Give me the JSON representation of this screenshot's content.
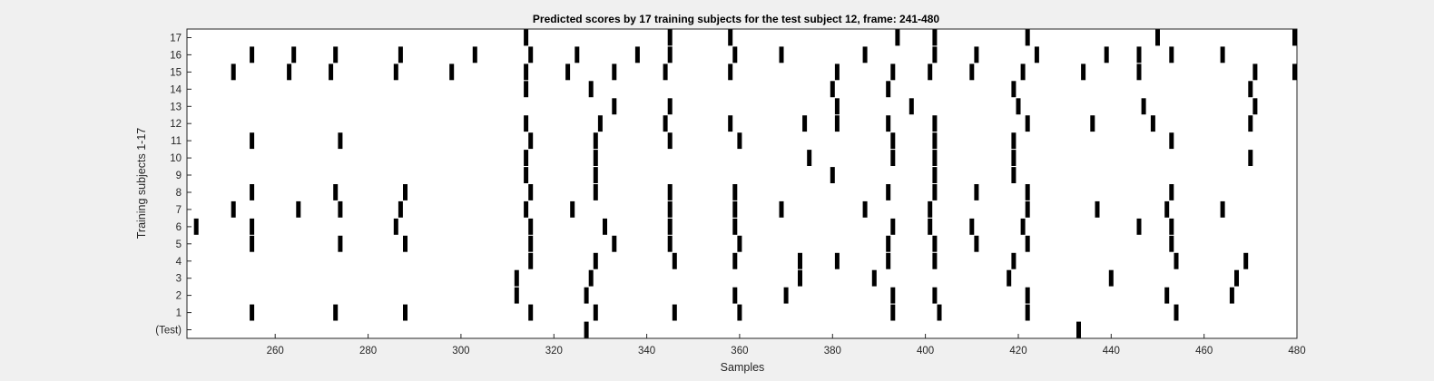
{
  "chart_data": {
    "type": "raster",
    "title": "Predicted scores by 17 training subjects for the test subject 12, frame: 241-480",
    "xlabel": "Samples",
    "ylabel": "Training subjects 1-17",
    "xlim": [
      241,
      480
    ],
    "xticks": [
      260,
      280,
      300,
      320,
      340,
      360,
      380,
      400,
      420,
      440,
      460,
      480
    ],
    "rows": [
      "(Test)",
      "1",
      "2",
      "3",
      "4",
      "5",
      "6",
      "7",
      "8",
      "9",
      "10",
      "11",
      "12",
      "13",
      "14",
      "15",
      "16",
      "17"
    ],
    "bar_color": "#000000",
    "background": "#ffffff",
    "events": {
      "(Test)": [
        327,
        433
      ],
      "1": [
        255,
        273,
        288,
        315,
        329,
        346,
        360,
        393,
        403,
        422,
        454
      ],
      "2": [
        312,
        327,
        359,
        370,
        393,
        402,
        422,
        452,
        466
      ],
      "3": [
        312,
        328,
        373,
        389,
        418,
        440,
        467
      ],
      "4": [
        315,
        329,
        346,
        359,
        373,
        381,
        392,
        402,
        419,
        454,
        469
      ],
      "5": [
        255,
        274,
        288,
        315,
        333,
        345,
        360,
        392,
        402,
        411,
        422,
        453
      ],
      "6": [
        243,
        255,
        286,
        315,
        331,
        345,
        359,
        393,
        401,
        410,
        421,
        446,
        453
      ],
      "7": [
        251,
        265,
        274,
        287,
        314,
        324,
        345,
        359,
        369,
        387,
        401,
        422,
        437,
        452,
        464
      ],
      "8": [
        255,
        273,
        288,
        315,
        329,
        345,
        359,
        392,
        402,
        411,
        422,
        453
      ],
      "9": [
        314,
        329,
        380,
        402,
        419
      ],
      "10": [
        314,
        329,
        375,
        393,
        402,
        419,
        470
      ],
      "11": [
        255,
        274,
        315,
        329,
        345,
        360,
        393,
        402,
        419,
        453
      ],
      "12": [
        314,
        330,
        344,
        358,
        374,
        381,
        392,
        402,
        422,
        436,
        449,
        470
      ],
      "13": [
        333,
        345,
        381,
        397,
        420,
        447,
        471
      ],
      "14": [
        314,
        328,
        380,
        392,
        419,
        470
      ],
      "15": [
        251,
        263,
        272,
        286,
        298,
        314,
        323,
        333,
        344,
        358,
        381,
        393,
        401,
        410,
        421,
        434,
        446,
        471,
        480
      ],
      "16": [
        255,
        264,
        273,
        287,
        303,
        315,
        325,
        338,
        345,
        359,
        369,
        387,
        402,
        411,
        424,
        439,
        446,
        453,
        464
      ],
      "17": [
        314,
        345,
        358,
        394,
        402,
        422,
        450,
        480
      ]
    }
  }
}
